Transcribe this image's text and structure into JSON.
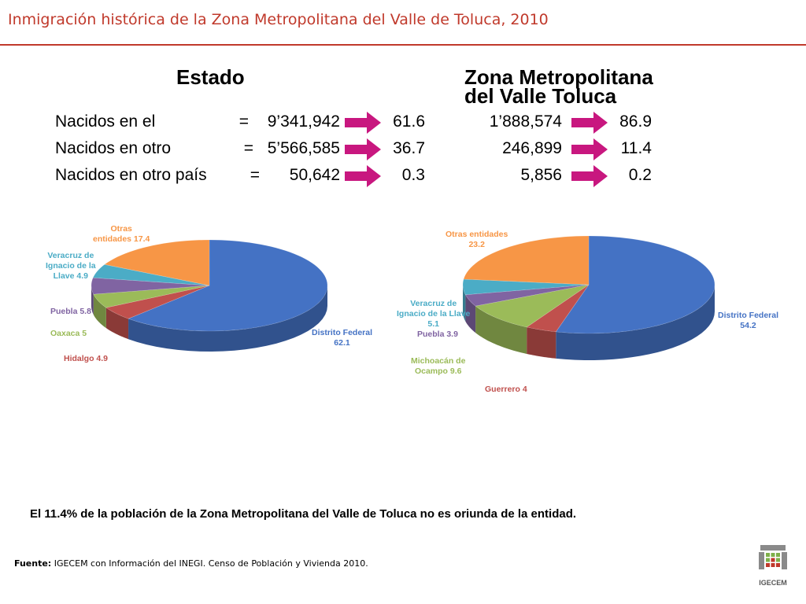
{
  "title": "Inmigración histórica de la Zona Metropolitana del Valle de Toluca, 2010",
  "table": {
    "col_estado": "Estado",
    "col_zona": [
      "Zona Metropolitana",
      "del Valle Toluca"
    ],
    "rows": [
      {
        "label": "Nacidos en el",
        "eq": "=",
        "estado_value": "9’341,942",
        "estado_pct": "61.6",
        "zona_value": "1’888,574",
        "zona_pct": "86.9"
      },
      {
        "label": "Nacidos en otro",
        "eq": "=",
        "estado_value": "5’566,585",
        "estado_pct": "36.7",
        "zona_value": "246,899",
        "zona_pct": "11.4"
      },
      {
        "label": "Nacidos en otro país",
        "eq": "=",
        "estado_value": "50,642",
        "estado_pct": "0.3",
        "zona_value": "5,856",
        "zona_pct": "0.2"
      }
    ],
    "arrow_color": "#c8177f"
  },
  "chart_data": [
    {
      "type": "pie",
      "title": "",
      "slices": [
        {
          "name": "Distrito Federal",
          "value": 62.1,
          "color": "#4472c4",
          "label_lines": [
            "Distrito Federal",
            "62.1"
          ],
          "label_color": "#4472c4"
        },
        {
          "name": "Hidalgo",
          "value": 4.9,
          "color": "#c0504d",
          "label_lines": [
            "Hidalgo 4.9"
          ],
          "label_color": "#c0504d"
        },
        {
          "name": "Oaxaca",
          "value": 5,
          "color": "#9bbb59",
          "label_lines": [
            "Oaxaca 5"
          ],
          "label_color": "#9bbb59"
        },
        {
          "name": "Puebla",
          "value": 5.8,
          "color": "#8064a2",
          "label_lines": [
            "Puebla 5.8"
          ],
          "label_color": "#8064a2"
        },
        {
          "name": "Veracruz de Ignacio de la Llave",
          "value": 4.9,
          "color": "#4bacc6",
          "label_lines": [
            "Veracruz de",
            "Ignacio de la",
            "Llave 4.9"
          ],
          "label_color": "#4bacc6"
        },
        {
          "name": "Otras entidades",
          "value": 17.4,
          "color": "#f79646",
          "label_lines": [
            "Otras",
            "entidades 17.4"
          ],
          "label_color": "#f79646"
        }
      ]
    },
    {
      "type": "pie",
      "title": "",
      "slices": [
        {
          "name": "Distrito Federal",
          "value": 54.2,
          "color": "#4472c4",
          "label_lines": [
            "Distrito Federal",
            "54.2"
          ],
          "label_color": "#4472c4"
        },
        {
          "name": "Guerrero",
          "value": 4,
          "color": "#c0504d",
          "label_lines": [
            "Guerrero 4"
          ],
          "label_color": "#c0504d"
        },
        {
          "name": "Michoacán de Ocampo",
          "value": 9.6,
          "color": "#9bbb59",
          "label_lines": [
            "Michoacán de",
            "Ocampo 9.6"
          ],
          "label_color": "#9bbb59"
        },
        {
          "name": "Puebla",
          "value": 3.9,
          "color": "#8064a2",
          "label_lines": [
            "Puebla 3.9"
          ],
          "label_color": "#8064a2"
        },
        {
          "name": "Veracruz de Ignacio de la Llave",
          "value": 5.1,
          "color": "#4bacc6",
          "label_lines": [
            "Veracruz de",
            "Ignacio de la Llave",
            "5.1"
          ],
          "label_color": "#4bacc6"
        },
        {
          "name": "Otras entidades",
          "value": 23.2,
          "color": "#f79646",
          "label_lines": [
            "Otras entidades",
            "23.2"
          ],
          "label_color": "#f79646"
        }
      ]
    }
  ],
  "conclusion": "El 11.4% de la población de la Zona Metropolitana del Valle de Toluca no es oriunda de la entidad.",
  "source": {
    "label": "Fuente:",
    "text": " IGECEM con Información del INEGI. Censo de Población y Vivienda 2010."
  },
  "logo": {
    "text": "IGECEM"
  }
}
